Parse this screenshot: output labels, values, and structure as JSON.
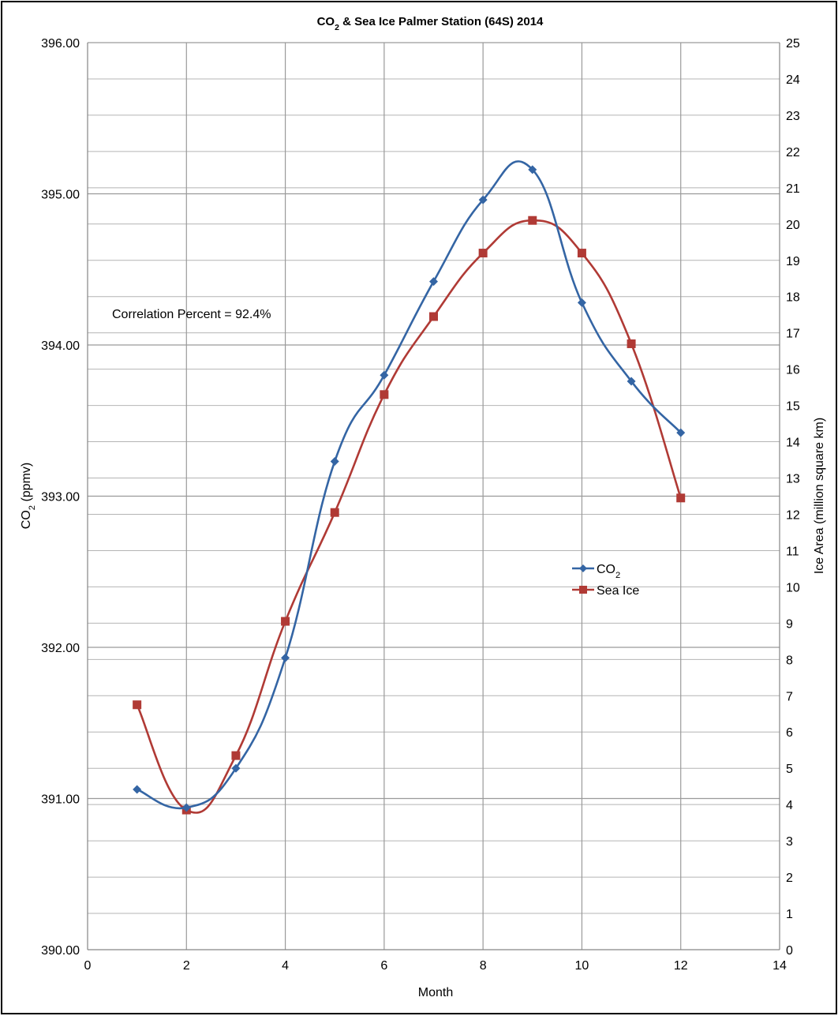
{
  "chart_data": {
    "type": "line",
    "title": "CO₂ & Sea Ice Palmer Station (64S) 2014",
    "xlabel": "Month",
    "ylabel": "CO₂ (ppmv)",
    "y2label": "Ice Area (million square km)",
    "xlim": [
      0,
      14
    ],
    "ylim": [
      390,
      396
    ],
    "y2lim": [
      0,
      25
    ],
    "x_ticks": [
      0,
      2,
      4,
      6,
      8,
      10,
      12,
      14
    ],
    "x_tick_labels": [
      "0",
      "2",
      "4",
      "6",
      "8",
      "10",
      "12",
      "14"
    ],
    "y_ticks": [
      390,
      391,
      392,
      393,
      394,
      395,
      396
    ],
    "y_tick_labels": [
      "390.00",
      "391.00",
      "392.00",
      "393.00",
      "394.00",
      "395.00",
      "396.00"
    ],
    "y2_ticks": [
      0,
      1,
      2,
      3,
      4,
      5,
      6,
      7,
      8,
      9,
      10,
      11,
      12,
      13,
      14,
      15,
      16,
      17,
      18,
      19,
      20,
      21,
      22,
      23,
      24,
      25
    ],
    "y2_tick_labels": [
      "0",
      "1",
      "2",
      "3",
      "4",
      "5",
      "6",
      "7",
      "8",
      "9",
      "10",
      "11",
      "12",
      "13",
      "14",
      "15",
      "16",
      "17",
      "18",
      "19",
      "20",
      "21",
      "22",
      "23",
      "24",
      "25"
    ],
    "grid": true,
    "legend_position": "center-right",
    "annotation": "Correlation Percent = 92.4%",
    "series": [
      {
        "name": "CO₂",
        "axis": "left",
        "marker": "diamond",
        "color": "#3465a4",
        "x": [
          1,
          2,
          3,
          4,
          5,
          6,
          7,
          8,
          9,
          10,
          11,
          12
        ],
        "values": [
          391.06,
          390.94,
          391.2,
          391.93,
          393.23,
          393.8,
          394.42,
          394.96,
          395.16,
          394.28,
          393.76,
          393.42
        ]
      },
      {
        "name": "Sea Ice",
        "axis": "right",
        "marker": "square",
        "color": "#b03a35",
        "x": [
          1,
          2,
          3,
          4,
          5,
          6,
          7,
          8,
          9,
          10,
          11,
          12
        ],
        "values": [
          6.75,
          3.85,
          5.35,
          9.05,
          12.05,
          15.3,
          17.45,
          19.2,
          20.1,
          19.2,
          16.7,
          12.45
        ]
      }
    ]
  }
}
